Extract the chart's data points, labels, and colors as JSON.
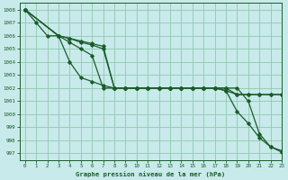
{
  "title": "Graphe pression niveau de la mer (hPa)",
  "xlim": [
    -0.5,
    23
  ],
  "ylim": [
    996.5,
    1008.5
  ],
  "ytick_vals": [
    997,
    998,
    999,
    1000,
    1001,
    1002,
    1003,
    1004,
    1005,
    1006,
    1007,
    1008
  ],
  "xtick_vals": [
    0,
    1,
    2,
    3,
    4,
    5,
    6,
    7,
    8,
    9,
    10,
    11,
    12,
    13,
    14,
    15,
    16,
    17,
    18,
    19,
    20,
    21,
    22,
    23
  ],
  "bg_color": "#c8eaea",
  "grid_color": "#90c8b0",
  "line_color": "#1a5c2a",
  "series": {
    "A": {
      "x": [
        0,
        1,
        2,
        3,
        4,
        5,
        6,
        7,
        8,
        9,
        10,
        11,
        12,
        13,
        14,
        15,
        16,
        17,
        18,
        19,
        20,
        21,
        22,
        23
      ],
      "y": [
        1008,
        1007,
        1006,
        1006,
        1004,
        1002.8,
        1002.5,
        1002.2,
        1002,
        1002,
        1002,
        1002,
        1002,
        1002,
        1002,
        1002,
        1002,
        1002,
        1001.8,
        1000.2,
        999.3,
        998.2,
        997.5,
        997.1
      ]
    },
    "B": {
      "x": [
        0,
        3,
        4,
        5,
        6,
        7,
        8,
        9,
        10,
        11,
        12,
        13,
        14,
        15,
        16,
        17,
        18,
        19,
        20,
        21,
        22,
        23
      ],
      "y": [
        1008,
        1006,
        1005.8,
        1005.5,
        1005.3,
        1005.0,
        1002,
        1002,
        1002,
        1002,
        1002,
        1002,
        1002,
        1002,
        1002,
        1002,
        1002,
        1001.5,
        1001.5,
        1001.5,
        1001.5,
        1001.5
      ]
    },
    "C": {
      "x": [
        0,
        3,
        4,
        5,
        6,
        7,
        8,
        9,
        10,
        11,
        12,
        13,
        14,
        15,
        16,
        17,
        18,
        19,
        20,
        21,
        22,
        23
      ],
      "y": [
        1008,
        1006,
        1005.8,
        1005.6,
        1005.4,
        1005.2,
        1002,
        1002,
        1002,
        1002,
        1002,
        1002,
        1002,
        1002,
        1002,
        1002,
        1001.8,
        1001.5,
        1001.5,
        1001.5,
        1001.5,
        1001.5
      ]
    },
    "D": {
      "x": [
        0,
        3,
        4,
        5,
        6,
        7,
        8,
        9,
        10,
        11,
        12,
        13,
        14,
        15,
        16,
        17,
        18,
        19,
        20,
        21,
        22,
        23
      ],
      "y": [
        1008,
        1006,
        1005.5,
        1005.0,
        1004.5,
        1002,
        1002,
        1002,
        1002,
        1002,
        1002,
        1002,
        1002,
        1002,
        1002,
        1002,
        1002,
        1002,
        1001,
        998.5,
        997.5,
        997.2
      ]
    }
  }
}
